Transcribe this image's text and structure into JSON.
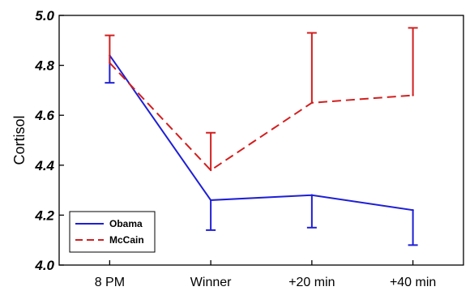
{
  "chart_data": {
    "type": "line",
    "categories": [
      "8 PM",
      "Winner",
      "+20 min",
      "+40 min"
    ],
    "ylabel": "Cortisol",
    "xlabel": "",
    "title": "",
    "ylim": [
      4.0,
      5.0
    ],
    "yticks": [
      "4.0",
      "4.2",
      "4.4",
      "4.6",
      "4.8",
      "5.0"
    ],
    "legend_position": "bottom-left",
    "grid": false,
    "series": [
      {
        "name": "Obama",
        "color": "#1f1fd6",
        "dash": "solid",
        "error_direction": "down",
        "values": [
          4.84,
          4.26,
          4.28,
          4.22
        ],
        "error_bounds": [
          4.73,
          4.14,
          4.15,
          4.08
        ]
      },
      {
        "name": "McCain",
        "color": "#d21f1f",
        "dash": "dashed",
        "error_direction": "up",
        "values": [
          4.81,
          4.38,
          4.65,
          4.68
        ],
        "error_bounds": [
          4.92,
          4.53,
          4.93,
          4.95
        ]
      }
    ]
  }
}
